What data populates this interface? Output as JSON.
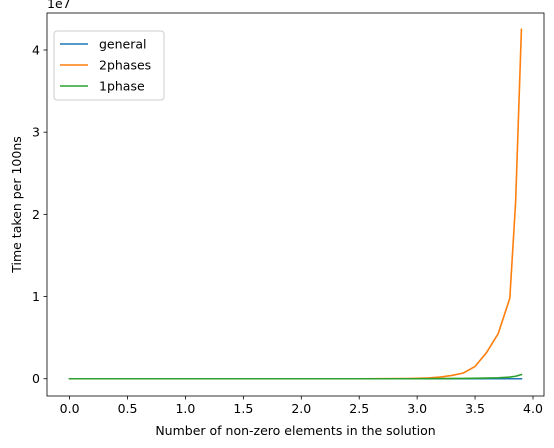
{
  "chart_data": {
    "type": "line",
    "xlabel": "Number of non-zero elements in the solution",
    "ylabel": "Time taken per 100ns",
    "y_offset_label": "1e7",
    "xlim": [
      -0.195,
      4.095
    ],
    "ylim": [
      -2100000,
      44500000
    ],
    "xticks": [
      0.0,
      0.5,
      1.0,
      1.5,
      2.0,
      2.5,
      3.0,
      3.5,
      4.0
    ],
    "xtick_labels": [
      "0.0",
      "0.5",
      "1.0",
      "1.5",
      "2.0",
      "2.5",
      "3.0",
      "3.5",
      "4.0"
    ],
    "yticks": [
      0,
      10000000,
      20000000,
      30000000,
      40000000
    ],
    "ytick_labels": [
      "0",
      "1",
      "2",
      "3",
      "4"
    ],
    "legend_position": "top-left",
    "series": [
      {
        "name": "general",
        "color": "#1f77b4",
        "x": [
          0.0,
          0.5,
          1.0,
          1.5,
          2.0,
          2.5,
          3.0,
          3.5,
          3.9
        ],
        "y": [
          0,
          0,
          0,
          0,
          0,
          0,
          0,
          0,
          0
        ]
      },
      {
        "name": "2phases",
        "color": "#ff7f0e",
        "x": [
          0.0,
          0.5,
          1.0,
          1.5,
          2.0,
          2.5,
          2.9,
          3.0,
          3.1,
          3.2,
          3.3,
          3.4,
          3.5,
          3.6,
          3.7,
          3.8,
          3.85,
          3.9
        ],
        "y": [
          0,
          0,
          0,
          0,
          0,
          0,
          20000,
          50000,
          100000,
          200000,
          400000,
          700000,
          1500000,
          3200000,
          5500000,
          9800000,
          21500000,
          42500000
        ]
      },
      {
        "name": "1phase",
        "color": "#2ca02c",
        "x": [
          0.0,
          0.5,
          1.0,
          1.5,
          2.0,
          2.5,
          3.0,
          3.2,
          3.4,
          3.6,
          3.7,
          3.8,
          3.85,
          3.9
        ],
        "y": [
          0,
          0,
          0,
          0,
          0,
          0,
          0,
          20000,
          40000,
          80000,
          120000,
          200000,
          300000,
          500000
        ]
      }
    ]
  }
}
